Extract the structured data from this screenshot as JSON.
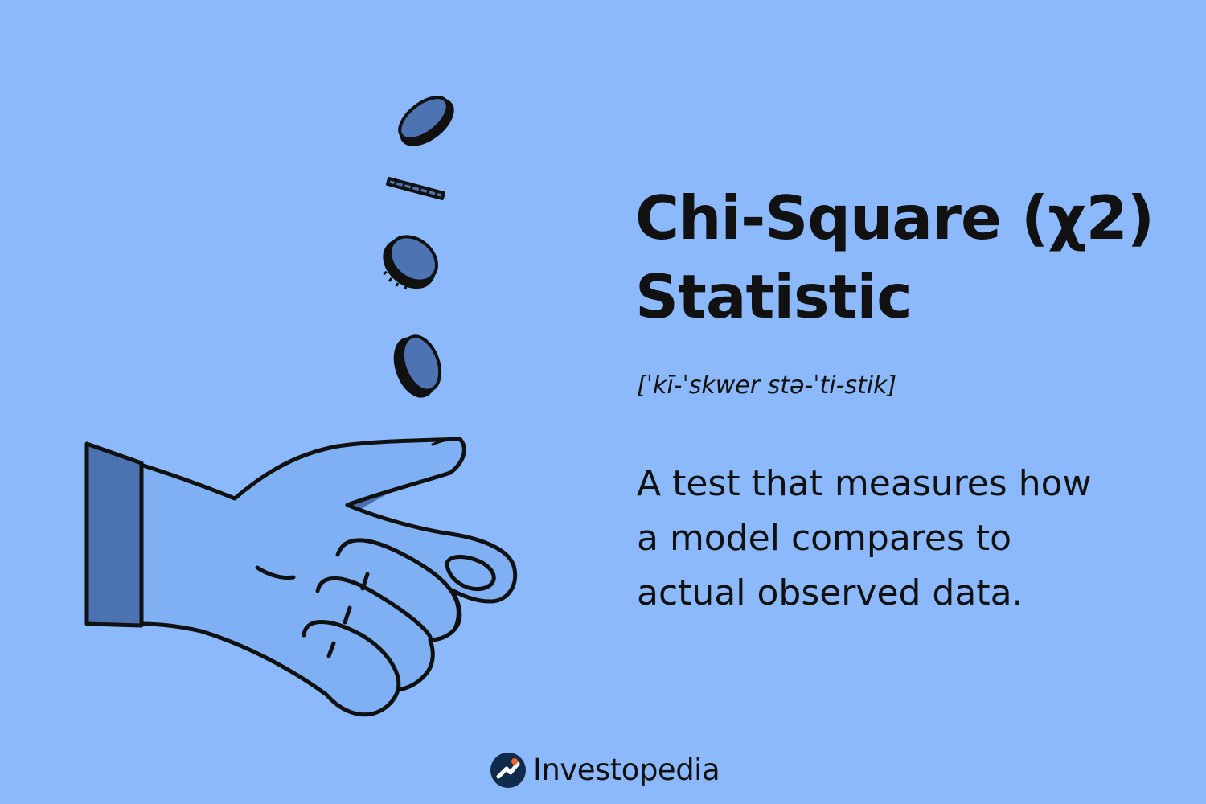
{
  "title_lines": [
    "Chi-Square (χ2)",
    "Statistic"
  ],
  "pronunciation": "[ˈkī-ˈskwer stə-ˈti-stik]",
  "definition_lines": [
    "A test that measures how",
    "a model compares to",
    "actual observed data."
  ],
  "brand": {
    "name": "Investopedia",
    "mark_icon": "investopedia-logo-mark-icon"
  },
  "illustration": {
    "subject": "hand-tossing-coins",
    "coin_count": 4
  },
  "colors": {
    "background": "#8bb9fb",
    "hand_fill": "#7fb0f3",
    "sleeve_fill": "#4b73b1",
    "coin_fill": "#4d73b3",
    "shadow": "#4a6fb0",
    "ink": "#111111",
    "logo_mark": "#0f2a4a",
    "logo_accent": "#e8672c"
  }
}
